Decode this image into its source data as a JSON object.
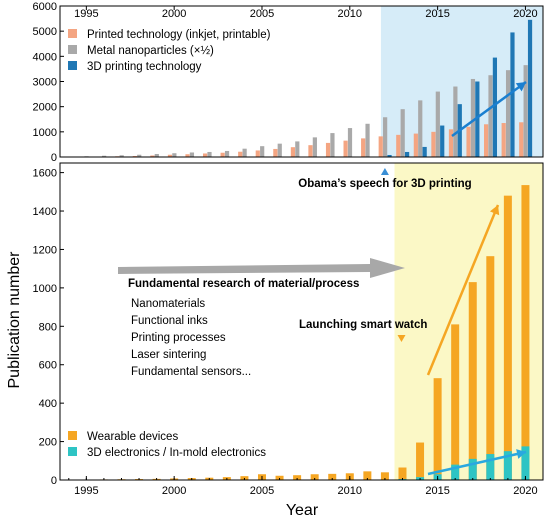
{
  "figure": {
    "ylabel": "Publication number",
    "xlabel": "Year"
  },
  "colors": {
    "printed": "#f4a582",
    "metal": "#a9a9a9",
    "printing3d": "#1f77b4",
    "wearable": "#f5a623",
    "electronics3d": "#2ec4c4",
    "top_highlight": "#d6ecf8",
    "bottom_highlight": "#fbf8c6",
    "gray_arrow": "#a8a8a8",
    "blue_arrow": "#1a7fd0",
    "orange_arrow": "#f5a623",
    "cyan_arrow": "#29a8e0",
    "text": "#000000"
  },
  "chart_data": [
    {
      "type": "bar",
      "panel": "top",
      "x_ticks": [
        "1995",
        "2000",
        "2005",
        "2010",
        "2015",
        "2020"
      ],
      "xlim": [
        1993.5,
        2021
      ],
      "ylim": [
        0,
        6000
      ],
      "y_ticks": [
        "0",
        "1000",
        "2000",
        "3000",
        "4000",
        "5000",
        "6000"
      ],
      "grid": false,
      "legend_position": "top-left",
      "highlight_range": [
        2012,
        2021
      ],
      "series": [
        {
          "name": "Printed technology (inkjet, printable)",
          "x": [
            1995,
            1996,
            1997,
            1998,
            1999,
            2000,
            2001,
            2002,
            2003,
            2004,
            2005,
            2006,
            2007,
            2008,
            2009,
            2010,
            2011,
            2012,
            2013,
            2014,
            2015,
            2016,
            2017,
            2018,
            2019,
            2020
          ],
          "values": [
            10,
            20,
            30,
            40,
            60,
            90,
            110,
            140,
            170,
            210,
            260,
            320,
            390,
            470,
            560,
            650,
            740,
            820,
            880,
            930,
            1000,
            1100,
            1200,
            1300,
            1350,
            1380
          ]
        },
        {
          "name": "Metal nanoparticles (×½)",
          "x": [
            1995,
            1996,
            1997,
            1998,
            1999,
            2000,
            2001,
            2002,
            2003,
            2004,
            2005,
            2006,
            2007,
            2008,
            2009,
            2010,
            2011,
            2012,
            2013,
            2014,
            2015,
            2016,
            2017,
            2018,
            2019,
            2020
          ],
          "values": [
            30,
            50,
            70,
            90,
            120,
            150,
            180,
            200,
            240,
            330,
            430,
            530,
            620,
            780,
            950,
            1150,
            1320,
            1580,
            1900,
            2250,
            2600,
            2800,
            3100,
            3250,
            3450,
            3650
          ]
        },
        {
          "name": "3D printing technology",
          "x": [
            2012,
            2013,
            2014,
            2015,
            2016,
            2017,
            2018,
            2019,
            2020
          ],
          "values": [
            80,
            200,
            400,
            1250,
            2100,
            3000,
            3950,
            4950,
            5450
          ]
        }
      ]
    },
    {
      "type": "bar",
      "panel": "bottom",
      "x_ticks": [
        "1995",
        "2000",
        "2005",
        "2010",
        "2015",
        "2020"
      ],
      "xlim": [
        1993.5,
        2021
      ],
      "ylim": [
        0,
        1650
      ],
      "y_ticks": [
        "0",
        "200",
        "400",
        "600",
        "800",
        "1000",
        "1200",
        "1400",
        "1600"
      ],
      "grid": false,
      "legend_position": "bottom-left",
      "highlight_range": [
        2013,
        2021
      ],
      "stacked": false,
      "series": [
        {
          "name": "Wearable devices",
          "x": [
            1995,
            1996,
            1997,
            1998,
            1999,
            2000,
            2001,
            2002,
            2003,
            2004,
            2005,
            2006,
            2007,
            2008,
            2009,
            2010,
            2011,
            2012,
            2013,
            2014,
            2015,
            2016,
            2017,
            2018,
            2019,
            2020
          ],
          "values": [
            2,
            3,
            4,
            5,
            6,
            8,
            10,
            12,
            15,
            20,
            30,
            22,
            25,
            30,
            32,
            35,
            45,
            40,
            65,
            195,
            530,
            810,
            1030,
            1165,
            1480,
            1535
          ]
        },
        {
          "name": "3D electronics / In-mold electronics",
          "x": [
            2013,
            2014,
            2015,
            2016,
            2017,
            2018,
            2019,
            2020
          ],
          "values": [
            5,
            15,
            30,
            80,
            110,
            135,
            150,
            175
          ]
        }
      ]
    }
  ],
  "annotations": {
    "obama": "Obama’s speech for 3D printing",
    "fundamental_title": "Fundamental research of material/process",
    "fundamental_items": [
      "Nanomaterials",
      "Functional inks",
      "Printing processes",
      "Laser sintering",
      "Fundamental sensors..."
    ],
    "smartwatch": "Launching smart watch"
  }
}
